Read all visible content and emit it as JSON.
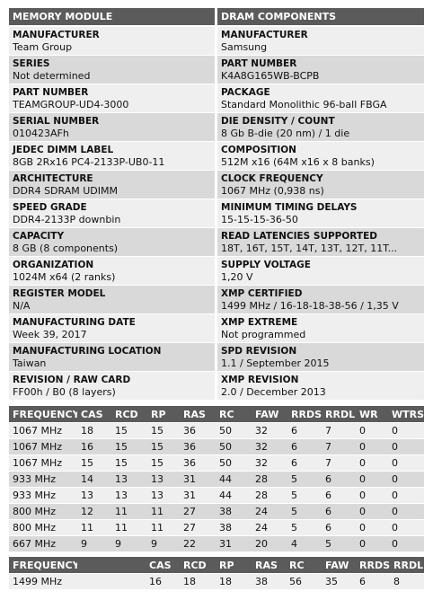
{
  "module": {
    "title": "MEMORY MODULE",
    "fields": [
      {
        "label": "MANUFACTURER",
        "value": "Team Group"
      },
      {
        "label": "SERIES",
        "value": "Not determined"
      },
      {
        "label": "PART NUMBER",
        "value": "TEAMGROUP-UD4-3000"
      },
      {
        "label": "SERIAL NUMBER",
        "value": "010423AFh"
      },
      {
        "label": "JEDEC DIMM LABEL",
        "value": "8GB 2Rx16 PC4-2133P-UB0-11"
      },
      {
        "label": "ARCHITECTURE",
        "value": "DDR4 SDRAM UDIMM"
      },
      {
        "label": "SPEED GRADE",
        "value": "DDR4-2133P downbin"
      },
      {
        "label": "CAPACITY",
        "value": "8 GB (8 components)"
      },
      {
        "label": "ORGANIZATION",
        "value": "1024M x64 (2 ranks)"
      },
      {
        "label": "REGISTER MODEL",
        "value": "N/A"
      },
      {
        "label": "MANUFACTURING DATE",
        "value": "Week 39, 2017"
      },
      {
        "label": "MANUFACTURING LOCATION",
        "value": "Taiwan"
      },
      {
        "label": "REVISION / RAW CARD",
        "value": "FF00h / B0 (8 layers)"
      }
    ]
  },
  "components": {
    "title": "DRAM COMPONENTS",
    "fields": [
      {
        "label": "MANUFACTURER",
        "value": "Samsung"
      },
      {
        "label": "PART NUMBER",
        "value": "K4A8G165WB-BCPB"
      },
      {
        "label": "PACKAGE",
        "value": "Standard Monolithic 96-ball FBGA"
      },
      {
        "label": "DIE DENSITY / COUNT",
        "value": "8 Gb B-die (20 nm) / 1 die"
      },
      {
        "label": "COMPOSITION",
        "value": "512M x16 (64M x16 x 8 banks)"
      },
      {
        "label": "CLOCK FREQUENCY",
        "value": "1067 MHz (0,938 ns)"
      },
      {
        "label": "MINIMUM TIMING DELAYS",
        "value": "15-15-15-36-50"
      },
      {
        "label": "READ LATENCIES SUPPORTED",
        "value": "18T, 16T, 15T, 14T, 13T, 12T, 11T..."
      },
      {
        "label": "SUPPLY VOLTAGE",
        "value": "1,20 V"
      },
      {
        "label": "XMP CERTIFIED",
        "value": "1499 MHz / 16-18-18-38-56 / 1,35 V"
      },
      {
        "label": "XMP EXTREME",
        "value": "Not programmed"
      },
      {
        "label": "SPD REVISION",
        "value": "1.1 / September 2015"
      },
      {
        "label": "XMP REVISION",
        "value": "2.0 / December 2013"
      }
    ]
  },
  "timings": {
    "headers": [
      "FREQUENCY",
      "CAS",
      "RCD",
      "RP",
      "RAS",
      "RC",
      "FAW",
      "RRDS",
      "RRDL",
      "WR",
      "WTRS"
    ],
    "rows": [
      [
        "1067 MHz",
        "18",
        "15",
        "15",
        "36",
        "50",
        "32",
        "6",
        "7",
        "0",
        "0"
      ],
      [
        "1067 MHz",
        "16",
        "15",
        "15",
        "36",
        "50",
        "32",
        "6",
        "7",
        "0",
        "0"
      ],
      [
        "1067 MHz",
        "15",
        "15",
        "15",
        "36",
        "50",
        "32",
        "6",
        "7",
        "0",
        "0"
      ],
      [
        "933 MHz",
        "14",
        "13",
        "13",
        "31",
        "44",
        "28",
        "5",
        "6",
        "0",
        "0"
      ],
      [
        "933 MHz",
        "13",
        "13",
        "13",
        "31",
        "44",
        "28",
        "5",
        "6",
        "0",
        "0"
      ],
      [
        "800 MHz",
        "12",
        "11",
        "11",
        "27",
        "38",
        "24",
        "5",
        "6",
        "0",
        "0"
      ],
      [
        "800 MHz",
        "11",
        "11",
        "11",
        "27",
        "38",
        "24",
        "5",
        "6",
        "0",
        "0"
      ],
      [
        "667 MHz",
        "9",
        "9",
        "9",
        "22",
        "31",
        "20",
        "4",
        "5",
        "0",
        "0"
      ]
    ]
  },
  "xmp": {
    "headers": [
      "FREQUENCY",
      "",
      "CAS",
      "RCD",
      "RP",
      "RAS",
      "RC",
      "FAW",
      "RRDS",
      "RRDL"
    ],
    "rows": [
      [
        "1499 MHz",
        "",
        "16",
        "18",
        "18",
        "38",
        "56",
        "35",
        "6",
        "8"
      ]
    ]
  }
}
